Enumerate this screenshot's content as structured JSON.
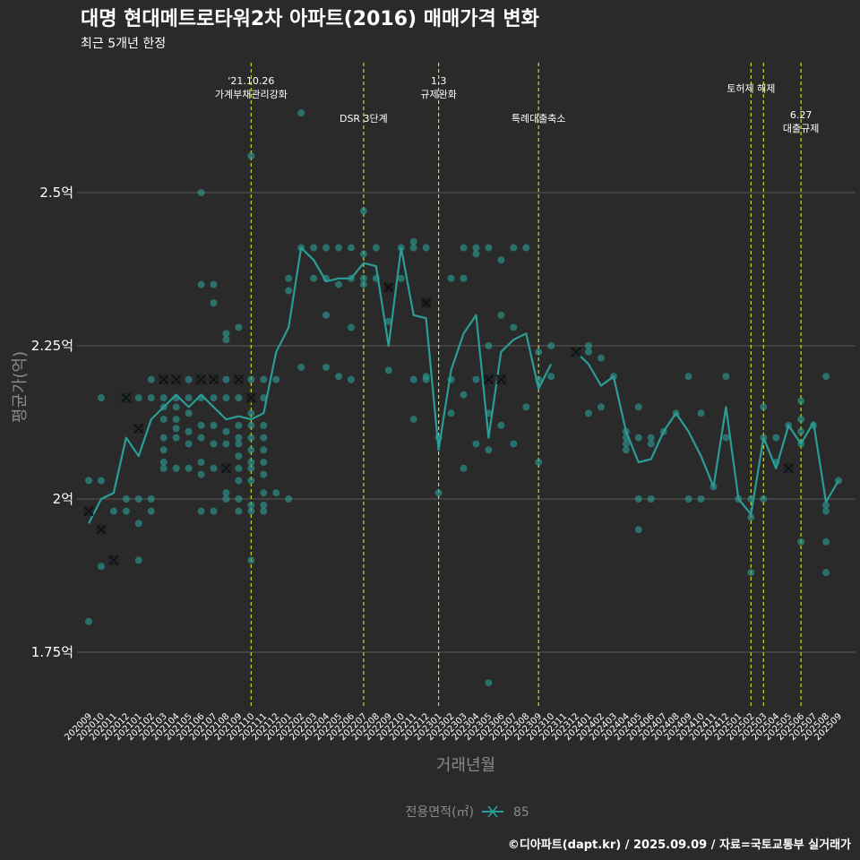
{
  "colors": {
    "background": "#2a2a2a",
    "series": "#2a9d96",
    "point": "#2a9d96",
    "event_line": "#d4d42a",
    "grid": "#5a5a5a",
    "muted": "#8a8a8a"
  },
  "chart_data": {
    "type": "line",
    "title": "대명 현대메트로타워2차 아파트(2016) 매매가격 변화",
    "subtitle": "최근 5개년 한정",
    "xlabel": "거래년월",
    "ylabel": "평균가(억)",
    "caption": "©디아파트(dapt.kr) / 2025.09.09 / 자료=국토교통부 실거래가",
    "legend": {
      "title": "전용면적(㎡)",
      "position": "bottom",
      "entries": [
        "85"
      ]
    },
    "ylim": [
      1.65,
      2.72
    ],
    "y_ticks": [
      {
        "value": 1.75,
        "label": "1.75억"
      },
      {
        "value": 2.0,
        "label": "2억"
      },
      {
        "value": 2.25,
        "label": "2.25억"
      },
      {
        "value": 2.5,
        "label": "2.5억"
      }
    ],
    "x_categories": [
      "202009",
      "202010",
      "202011",
      "202012",
      "202101",
      "202102",
      "202103",
      "202104",
      "202105",
      "202106",
      "202107",
      "202108",
      "202109",
      "202110",
      "202111",
      "202112",
      "202201",
      "202202",
      "202203",
      "202204",
      "202205",
      "202206",
      "202207",
      "202208",
      "202209",
      "202210",
      "202211",
      "202212",
      "202301",
      "202302",
      "202303",
      "202304",
      "202305",
      "202306",
      "202307",
      "202308",
      "202309",
      "202310",
      "202311",
      "202312",
      "202401",
      "202402",
      "202403",
      "202404",
      "202405",
      "202406",
      "202407",
      "202408",
      "202409",
      "202410",
      "202411",
      "202412",
      "202501",
      "202502",
      "202503",
      "202504",
      "202505",
      "202506",
      "202507",
      "202508",
      "202509"
    ],
    "events": [
      {
        "x": "202110",
        "lines": [
          "'21.10.26",
          "가계부채관리강화"
        ],
        "label_level": 0
      },
      {
        "x": "202207",
        "lines": [
          "DSR 3단계"
        ],
        "label_level": 1
      },
      {
        "x": "202301",
        "lines": [
          "1.3",
          "규제완화"
        ],
        "label_level": 0
      },
      {
        "x": "202309",
        "lines": [
          "특례대출축소"
        ],
        "label_level": 1
      },
      {
        "x": "202502",
        "lines": [
          "토허제 해제"
        ],
        "label_level": 0.2
      },
      {
        "x": "202503",
        "lines": [],
        "label_level": 0
      },
      {
        "x": "202506",
        "lines": [
          "6.27",
          "대출규제"
        ],
        "label_level": 0.9
      }
    ],
    "series": [
      {
        "name": "85",
        "x": [
          "202009",
          "202010",
          "202011",
          "202012",
          "202101",
          "202102",
          "202103",
          "202104",
          "202105",
          "202106",
          "202107",
          "202108",
          "202109",
          "202110",
          "202111",
          "202112",
          "202201",
          "202202",
          "202203",
          "202204",
          "202205",
          "202206",
          "202207",
          "202208",
          "202209",
          "202210",
          "202211",
          "202212",
          "202301",
          "202302",
          "202303",
          "202304",
          "202305",
          "202306",
          "202307",
          "202308",
          "202309",
          "202310",
          "202312",
          "202401",
          "202402",
          "202403",
          "202404",
          "202405",
          "202406",
          "202407",
          "202408",
          "202409",
          "202410",
          "202411",
          "202412",
          "202501",
          "202502",
          "202503",
          "202504",
          "202505",
          "202506",
          "202507",
          "202508",
          "202509"
        ],
        "values": [
          1.96,
          2.0,
          2.01,
          2.1,
          2.07,
          2.13,
          2.15,
          2.17,
          2.15,
          2.17,
          2.15,
          2.13,
          2.135,
          2.13,
          2.14,
          2.24,
          2.28,
          2.41,
          2.39,
          2.355,
          2.36,
          2.36,
          2.385,
          2.38,
          2.25,
          2.41,
          2.3,
          2.295,
          2.08,
          2.21,
          2.27,
          2.3,
          2.1,
          2.24,
          2.26,
          2.27,
          2.18,
          2.22,
          2.24,
          2.22,
          2.185,
          2.2,
          2.11,
          2.06,
          2.065,
          2.11,
          2.14,
          2.11,
          2.07,
          2.02,
          2.15,
          2.0,
          1.975,
          2.1,
          2.05,
          2.12,
          2.09,
          2.125,
          1.995,
          2.03
        ]
      }
    ],
    "transactions": [
      [
        "202009",
        1.8
      ],
      [
        "202009",
        1.98
      ],
      [
        "202009",
        2.03
      ],
      [
        "202010",
        1.95
      ],
      [
        "202010",
        1.89
      ],
      [
        "202010",
        2.03
      ],
      [
        "202010",
        2.165
      ],
      [
        "202011",
        1.9
      ],
      [
        "202011",
        1.98
      ],
      [
        "202012",
        1.98
      ],
      [
        "202012",
        2.0
      ],
      [
        "202012",
        2.165
      ],
      [
        "202012",
        2.165
      ],
      [
        "202101",
        1.9
      ],
      [
        "202101",
        1.96
      ],
      [
        "202101",
        2.0
      ],
      [
        "202101",
        2.165
      ],
      [
        "202101",
        2.115
      ],
      [
        "202102",
        1.98
      ],
      [
        "202102",
        2.0
      ],
      [
        "202102",
        2.165
      ],
      [
        "202102",
        2.195
      ],
      [
        "202103",
        2.05
      ],
      [
        "202103",
        2.06
      ],
      [
        "202103",
        2.08
      ],
      [
        "202103",
        2.1
      ],
      [
        "202103",
        2.13
      ],
      [
        "202103",
        2.15
      ],
      [
        "202103",
        2.165
      ],
      [
        "202103",
        2.195
      ],
      [
        "202104",
        2.05
      ],
      [
        "202104",
        2.1
      ],
      [
        "202104",
        2.115
      ],
      [
        "202104",
        2.13
      ],
      [
        "202104",
        2.15
      ],
      [
        "202104",
        2.165
      ],
      [
        "202104",
        2.195
      ],
      [
        "202105",
        2.05
      ],
      [
        "202105",
        2.09
      ],
      [
        "202105",
        2.11
      ],
      [
        "202105",
        2.14
      ],
      [
        "202105",
        2.165
      ],
      [
        "202105",
        2.195
      ],
      [
        "202106",
        2.5
      ],
      [
        "202106",
        1.98
      ],
      [
        "202106",
        2.04
      ],
      [
        "202106",
        2.06
      ],
      [
        "202106",
        2.1
      ],
      [
        "202106",
        2.12
      ],
      [
        "202106",
        2.165
      ],
      [
        "202106",
        2.195
      ],
      [
        "202106",
        2.35
      ],
      [
        "202107",
        1.98
      ],
      [
        "202107",
        2.05
      ],
      [
        "202107",
        2.09
      ],
      [
        "202107",
        2.12
      ],
      [
        "202107",
        2.165
      ],
      [
        "202107",
        2.195
      ],
      [
        "202107",
        2.32
      ],
      [
        "202107",
        2.35
      ],
      [
        "202108",
        2.0
      ],
      [
        "202108",
        2.01
      ],
      [
        "202108",
        2.05
      ],
      [
        "202108",
        2.09
      ],
      [
        "202108",
        2.11
      ],
      [
        "202108",
        2.165
      ],
      [
        "202108",
        2.195
      ],
      [
        "202108",
        2.26
      ],
      [
        "202108",
        2.27
      ],
      [
        "202109",
        1.98
      ],
      [
        "202109",
        2.0
      ],
      [
        "202109",
        2.03
      ],
      [
        "202109",
        2.05
      ],
      [
        "202109",
        2.07
      ],
      [
        "202109",
        2.09
      ],
      [
        "202109",
        2.1
      ],
      [
        "202109",
        2.12
      ],
      [
        "202109",
        2.165
      ],
      [
        "202109",
        2.195
      ],
      [
        "202109",
        2.28
      ],
      [
        "202110",
        2.56
      ],
      [
        "202110",
        1.9
      ],
      [
        "202110",
        1.98
      ],
      [
        "202110",
        1.99
      ],
      [
        "202110",
        2.03
      ],
      [
        "202110",
        2.05
      ],
      [
        "202110",
        2.06
      ],
      [
        "202110",
        2.08
      ],
      [
        "202110",
        2.1
      ],
      [
        "202110",
        2.12
      ],
      [
        "202110",
        2.14
      ],
      [
        "202110",
        2.165
      ],
      [
        "202110",
        2.195
      ],
      [
        "202111",
        1.98
      ],
      [
        "202111",
        1.99
      ],
      [
        "202111",
        2.01
      ],
      [
        "202111",
        2.04
      ],
      [
        "202111",
        2.06
      ],
      [
        "202111",
        2.08
      ],
      [
        "202111",
        2.1
      ],
      [
        "202111",
        2.12
      ],
      [
        "202111",
        2.165
      ],
      [
        "202111",
        2.195
      ],
      [
        "202112",
        2.01
      ],
      [
        "202112",
        2.195
      ],
      [
        "202201",
        2.0
      ],
      [
        "202201",
        2.34
      ],
      [
        "202201",
        2.36
      ],
      [
        "202202",
        2.63
      ],
      [
        "202202",
        2.41
      ],
      [
        "202202",
        2.215
      ],
      [
        "202203",
        2.41
      ],
      [
        "202203",
        2.36
      ],
      [
        "202204",
        2.41
      ],
      [
        "202204",
        2.3
      ],
      [
        "202204",
        2.215
      ],
      [
        "202204",
        2.36
      ],
      [
        "202205",
        2.41
      ],
      [
        "202205",
        2.35
      ],
      [
        "202205",
        2.2
      ],
      [
        "202206",
        2.41
      ],
      [
        "202206",
        2.36
      ],
      [
        "202206",
        2.28
      ],
      [
        "202206",
        2.195
      ],
      [
        "202207",
        2.47
      ],
      [
        "202207",
        2.4
      ],
      [
        "202207",
        2.36
      ],
      [
        "202207",
        2.35
      ],
      [
        "202208",
        2.41
      ],
      [
        "202208",
        2.36
      ],
      [
        "202209",
        2.21
      ],
      [
        "202209",
        2.29
      ],
      [
        "202210",
        2.41
      ],
      [
        "202210",
        2.36
      ],
      [
        "202211",
        2.42
      ],
      [
        "202211",
        2.41
      ],
      [
        "202211",
        2.195
      ],
      [
        "202211",
        2.13
      ],
      [
        "202212",
        2.41
      ],
      [
        "202212",
        2.2
      ],
      [
        "202212",
        2.195
      ],
      [
        "202301",
        2.01
      ],
      [
        "202301",
        2.1
      ],
      [
        "202302",
        2.36
      ],
      [
        "202302",
        2.195
      ],
      [
        "202302",
        2.14
      ],
      [
        "202303",
        2.41
      ],
      [
        "202303",
        2.36
      ],
      [
        "202303",
        2.17
      ],
      [
        "202303",
        2.05
      ],
      [
        "202304",
        2.41
      ],
      [
        "202304",
        2.4
      ],
      [
        "202304",
        2.195
      ],
      [
        "202304",
        2.09
      ],
      [
        "202305",
        2.41
      ],
      [
        "202305",
        2.25
      ],
      [
        "202305",
        2.195
      ],
      [
        "202305",
        2.14
      ],
      [
        "202305",
        2.08
      ],
      [
        "202305",
        1.7
      ],
      [
        "202306",
        2.39
      ],
      [
        "202306",
        2.3
      ],
      [
        "202306",
        2.12
      ],
      [
        "202306",
        2.195
      ],
      [
        "202307",
        2.41
      ],
      [
        "202307",
        2.28
      ],
      [
        "202307",
        2.09
      ],
      [
        "202308",
        2.41
      ],
      [
        "202308",
        2.15
      ],
      [
        "202309",
        2.06
      ],
      [
        "202309",
        2.24
      ],
      [
        "202309",
        2.195
      ],
      [
        "202310",
        2.2
      ],
      [
        "202310",
        2.25
      ],
      [
        "202312",
        2.24
      ],
      [
        "202401",
        2.24
      ],
      [
        "202401",
        2.25
      ],
      [
        "202401",
        2.14
      ],
      [
        "202402",
        2.23
      ],
      [
        "202402",
        2.15
      ],
      [
        "202403",
        2.2
      ],
      [
        "202404",
        2.11
      ],
      [
        "202404",
        2.1
      ],
      [
        "202404",
        2.09
      ],
      [
        "202404",
        2.08
      ],
      [
        "202405",
        2.15
      ],
      [
        "202405",
        2.1
      ],
      [
        "202405",
        2.0
      ],
      [
        "202405",
        1.95
      ],
      [
        "202406",
        2.1
      ],
      [
        "202406",
        2.09
      ],
      [
        "202406",
        2.0
      ],
      [
        "202407",
        2.11
      ],
      [
        "202408",
        2.14
      ],
      [
        "202409",
        2.2
      ],
      [
        "202409",
        2.0
      ],
      [
        "202410",
        2.0
      ],
      [
        "202410",
        2.14
      ],
      [
        "202411",
        2.02
      ],
      [
        "202412",
        2.2
      ],
      [
        "202412",
        2.1
      ],
      [
        "202501",
        2.0
      ],
      [
        "202502",
        2.0
      ],
      [
        "202502",
        1.97
      ],
      [
        "202502",
        1.88
      ],
      [
        "202503",
        2.15
      ],
      [
        "202503",
        2.1
      ],
      [
        "202503",
        2.0
      ],
      [
        "202504",
        2.1
      ],
      [
        "202504",
        2.06
      ],
      [
        "202505",
        2.12
      ],
      [
        "202505",
        2.05
      ],
      [
        "202506",
        2.16
      ],
      [
        "202506",
        2.13
      ],
      [
        "202506",
        2.11
      ],
      [
        "202506",
        2.09
      ],
      [
        "202506",
        1.93
      ],
      [
        "202507",
        2.12
      ],
      [
        "202508",
        2.2
      ],
      [
        "202508",
        1.99
      ],
      [
        "202508",
        1.98
      ],
      [
        "202508",
        1.93
      ],
      [
        "202508",
        1.88
      ],
      [
        "202509",
        2.03
      ]
    ],
    "highlighted": [
      [
        "202009",
        1.98
      ],
      [
        "202010",
        1.95
      ],
      [
        "202011",
        1.9
      ],
      [
        "202012",
        2.165
      ],
      [
        "202101",
        2.115
      ],
      [
        "202103",
        2.195
      ],
      [
        "202104",
        2.195
      ],
      [
        "202106",
        2.195
      ],
      [
        "202107",
        2.195
      ],
      [
        "202108",
        2.05
      ],
      [
        "202109",
        2.195
      ],
      [
        "202110",
        2.165
      ],
      [
        "202209",
        2.345
      ],
      [
        "202212",
        2.32
      ],
      [
        "202305",
        2.195
      ],
      [
        "202306",
        2.195
      ],
      [
        "202312",
        2.24
      ],
      [
        "202505",
        2.05
      ]
    ]
  }
}
